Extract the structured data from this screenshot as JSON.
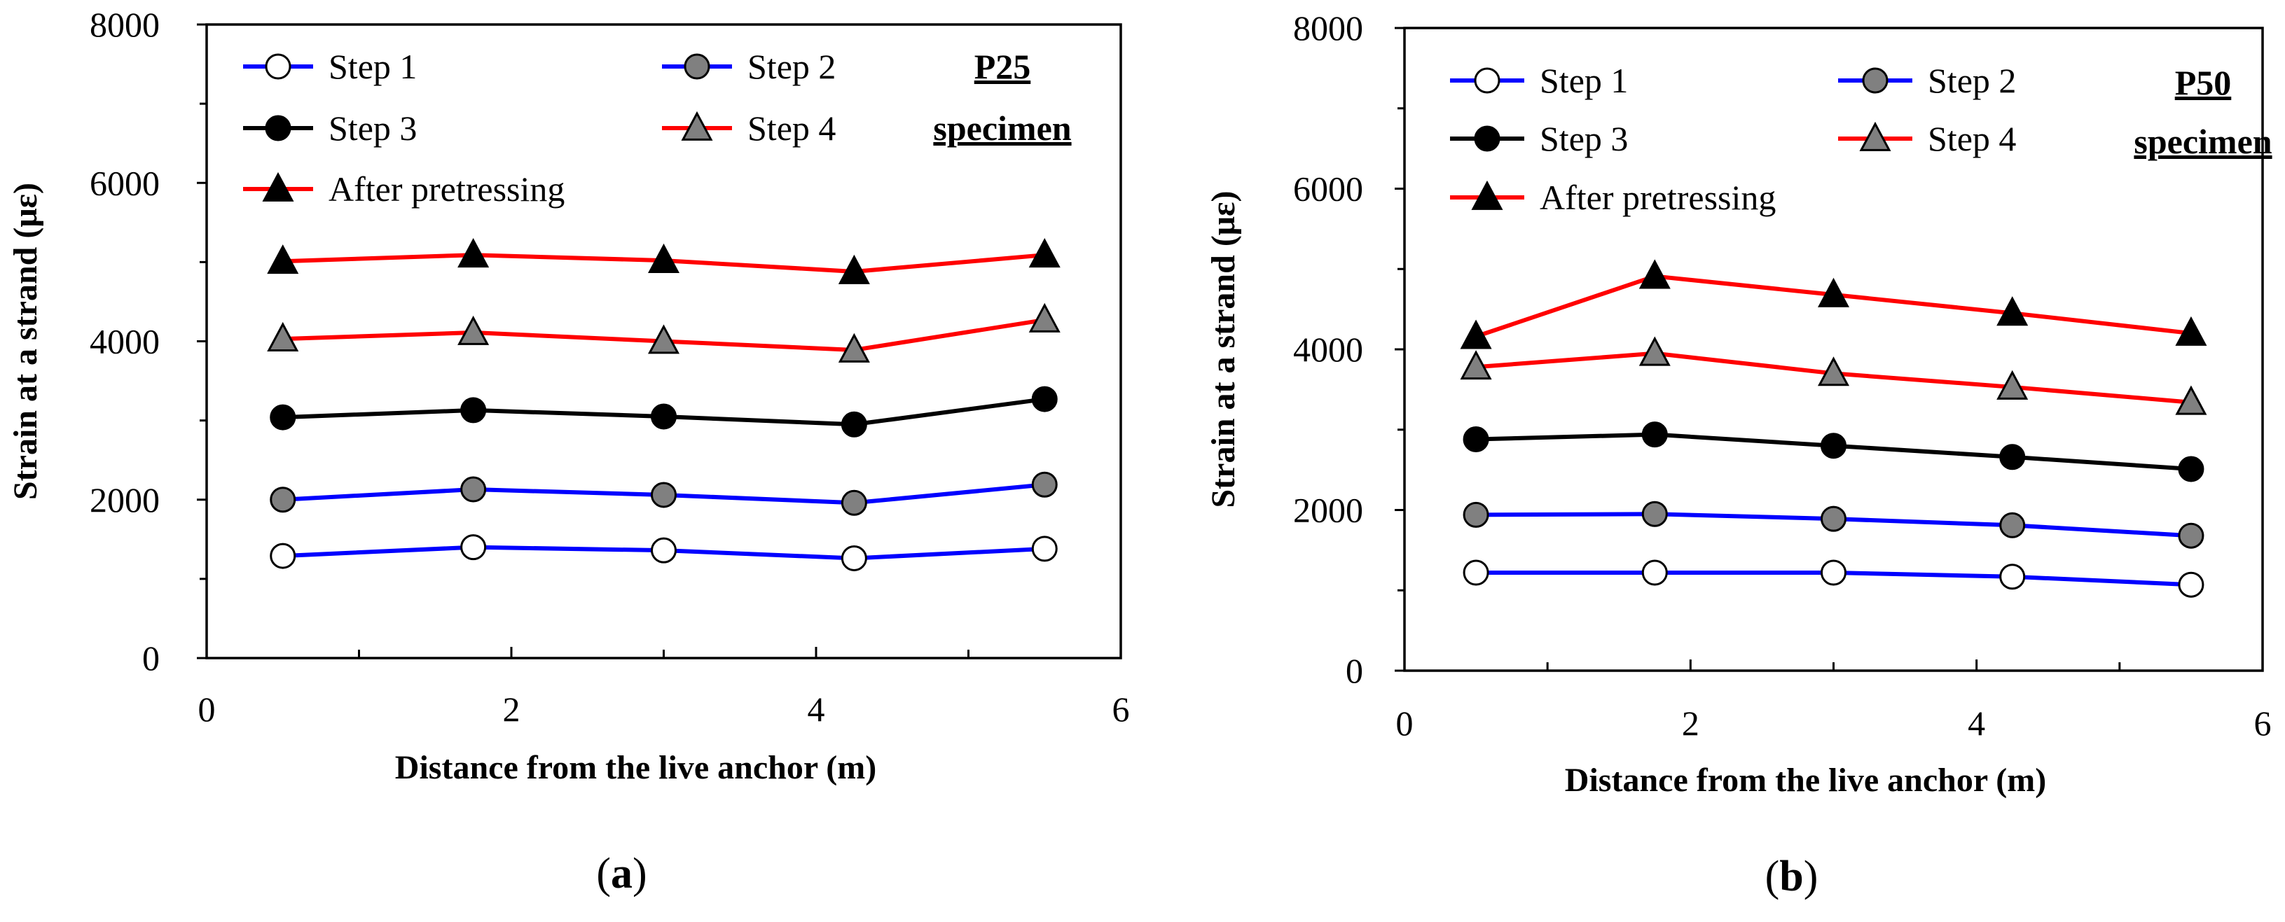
{
  "chart_data": [
    {
      "type": "line",
      "panel_label": "a",
      "specimen": [
        "P25",
        "specimen"
      ],
      "xlabel": "Distance from the live anchor (m)",
      "ylabel": "Strain at a strand (με)",
      "xlim": [
        0,
        6
      ],
      "ylim": [
        0,
        8000
      ],
      "x_ticks": [
        "0",
        "2",
        "4",
        "6"
      ],
      "y_ticks": [
        "0",
        "2000",
        "4000",
        "6000",
        "8000"
      ],
      "grid": false,
      "legend_position": "top",
      "x": [
        0.5,
        1.75,
        3.0,
        4.25,
        5.5
      ],
      "series": [
        {
          "name": "Step 1",
          "line_color": "#0000ff",
          "marker": "circle",
          "marker_fill": "#ffffff",
          "values": [
            1290,
            1400,
            1360,
            1260,
            1380
          ]
        },
        {
          "name": "Step 2",
          "line_color": "#0000ff",
          "marker": "circle",
          "marker_fill": "#808080",
          "values": [
            2000,
            2130,
            2060,
            1960,
            2190
          ]
        },
        {
          "name": "Step 3",
          "line_color": "#000000",
          "marker": "circle",
          "marker_fill": "#000000",
          "values": [
            3040,
            3130,
            3050,
            2950,
            3270
          ]
        },
        {
          "name": "Step 4",
          "line_color": "#ff0000",
          "marker": "triangle",
          "marker_fill": "#808080",
          "values": [
            4030,
            4110,
            4000,
            3890,
            4270
          ]
        },
        {
          "name": "After pretressing",
          "line_color": "#ff0000",
          "marker": "triangle",
          "marker_fill": "#000000",
          "values": [
            5010,
            5090,
            5020,
            4880,
            5090
          ]
        }
      ]
    },
    {
      "type": "line",
      "panel_label": "b",
      "specimen": [
        "P50",
        "specimen"
      ],
      "xlabel": "Distance from the live anchor (m)",
      "ylabel": "Strain at a strand (με)",
      "xlim": [
        0,
        6
      ],
      "ylim": [
        0,
        8000
      ],
      "x_ticks": [
        "0",
        "2",
        "4",
        "6"
      ],
      "y_ticks": [
        "0",
        "2000",
        "4000",
        "6000",
        "8000"
      ],
      "grid": false,
      "legend_position": "top",
      "x": [
        0.5,
        1.75,
        3.0,
        4.25,
        5.5
      ],
      "series": [
        {
          "name": "Step 1",
          "line_color": "#0000ff",
          "marker": "circle",
          "marker_fill": "#ffffff",
          "values": [
            1220,
            1220,
            1220,
            1170,
            1070
          ]
        },
        {
          "name": "Step 2",
          "line_color": "#0000ff",
          "marker": "circle",
          "marker_fill": "#808080",
          "values": [
            1940,
            1950,
            1890,
            1810,
            1680
          ]
        },
        {
          "name": "Step 3",
          "line_color": "#000000",
          "marker": "circle",
          "marker_fill": "#000000",
          "values": [
            2880,
            2940,
            2800,
            2660,
            2510
          ]
        },
        {
          "name": "Step 4",
          "line_color": "#ff0000",
          "marker": "triangle",
          "marker_fill": "#808080",
          "values": [
            3780,
            3950,
            3700,
            3530,
            3340
          ]
        },
        {
          "name": "After pretressing",
          "line_color": "#ff0000",
          "marker": "triangle",
          "marker_fill": "#000000",
          "values": [
            4160,
            4910,
            4680,
            4450,
            4200
          ]
        }
      ]
    }
  ]
}
